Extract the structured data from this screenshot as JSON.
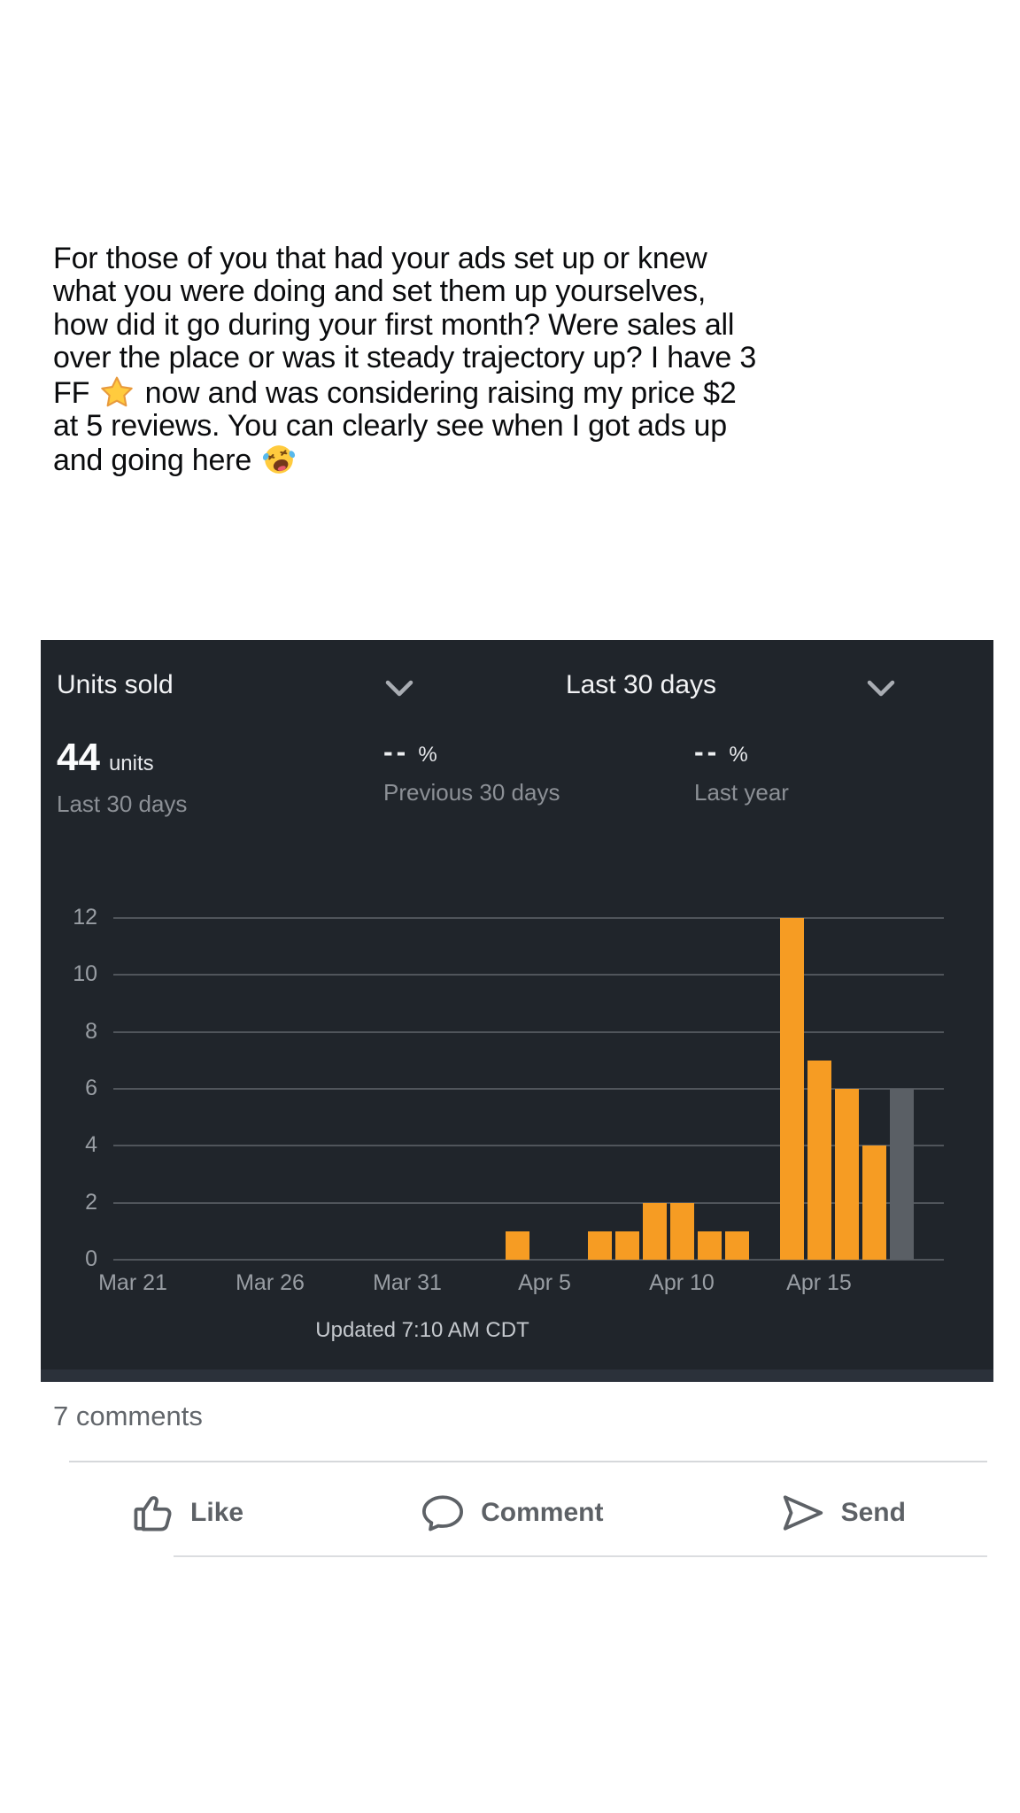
{
  "post": {
    "text": "For those of you that had your ads set up or knew what you were doing and set them up yourselves, how did it go during your first month? Were sales all over the place or was it steady trajectory up? I have 3 FF ⭐ now and was considering raising my price $2 at 5 reviews. You can clearly see when I got ads up and going here 🤣",
    "lines": [
      [
        {
          "t": "For those of you that had your ads set up or knew"
        }
      ],
      [
        {
          "t": "what you were doing and set them up yourselves,"
        }
      ],
      [
        {
          "t": "how did it go during your first month? Were sales all"
        }
      ],
      [
        {
          "t": "over the place or was it steady trajectory up? I have 3"
        }
      ],
      [
        {
          "t": "FF "
        },
        {
          "e": "star-emoji",
          "char": "⭐"
        },
        {
          "t": " now and was considering raising my price $2"
        }
      ],
      [
        {
          "t": "at 5 reviews. You can clearly see when I got ads up"
        }
      ],
      [
        {
          "t": "and going here "
        },
        {
          "e": "rofl-emoji",
          "char": "🤣"
        }
      ]
    ]
  },
  "chart_panel": {
    "metric_selector": {
      "label": "Units sold"
    },
    "range_selector": {
      "label": "Last 30 days"
    },
    "stats": [
      {
        "value": "44",
        "unit": "units",
        "sublabel": "Last 30 days"
      },
      {
        "value": "--",
        "unit": "%",
        "sublabel": "Previous 30 days"
      },
      {
        "value": "--",
        "unit": "%",
        "sublabel": "Last year"
      }
    ],
    "updated": "Updated 7:10 AM CDT",
    "colors": {
      "panel_bg": "#20252b",
      "gridline": "#50555b",
      "axis_label": "#999ea4",
      "bar": "#f69c23",
      "partial_bar": "#5a5f65"
    }
  },
  "chart_data": {
    "type": "bar",
    "title": "Units sold",
    "subtitle": "Last 30 days",
    "ylabel": "units",
    "ylim": [
      0,
      12
    ],
    "yticks": [
      0,
      2,
      4,
      6,
      8,
      10,
      12
    ],
    "grid": "horizontal",
    "categories": [
      "Mar 21",
      "Mar 22",
      "Mar 23",
      "Mar 24",
      "Mar 25",
      "Mar 26",
      "Mar 27",
      "Mar 28",
      "Mar 29",
      "Mar 30",
      "Mar 31",
      "Apr 1",
      "Apr 2",
      "Apr 3",
      "Apr 4",
      "Apr 5",
      "Apr 6",
      "Apr 7",
      "Apr 8",
      "Apr 9",
      "Apr 10",
      "Apr 11",
      "Apr 12",
      "Apr 13",
      "Apr 14",
      "Apr 15",
      "Apr 16",
      "Apr 17",
      "Apr 18"
    ],
    "values": [
      0,
      0,
      0,
      0,
      0,
      0,
      0,
      0,
      0,
      0,
      0,
      0,
      0,
      0,
      1,
      0,
      0,
      1,
      1,
      2,
      2,
      1,
      1,
      0,
      12,
      7,
      6,
      4,
      6
    ],
    "total_units": 44,
    "partial_day_index": 28,
    "xtick_indices": [
      0,
      5,
      10,
      15,
      20,
      25
    ],
    "xtick_labels": [
      "Mar 21",
      "Mar 26",
      "Mar 31",
      "Apr 5",
      "Apr 10",
      "Apr 15"
    ]
  },
  "comments": {
    "count_label": "7 comments"
  },
  "actions": [
    {
      "label": "Like"
    },
    {
      "label": "Comment"
    },
    {
      "label": "Send"
    }
  ]
}
